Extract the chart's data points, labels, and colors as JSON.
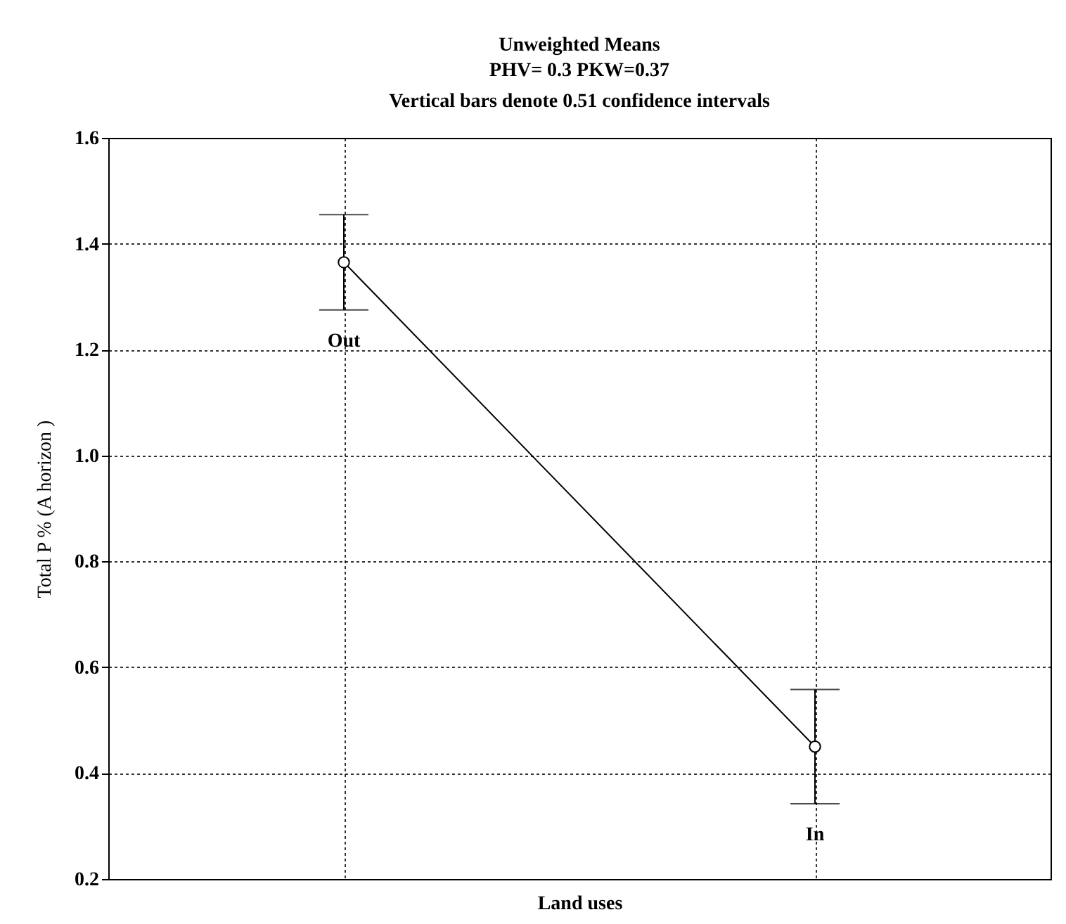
{
  "chart_data": {
    "type": "line",
    "title": "Unweighted Means",
    "subtitle": "PHV= 0.3   PKW=0.37",
    "annotations": [
      "Vertical bars denote 0.51 confidence intervals"
    ],
    "xlabel": "Land uses",
    "ylabel": "Total P % (A horizon )",
    "categories": [
      "Out",
      "In"
    ],
    "color": "#000000",
    "values": [
      1.365,
      0.45
    ],
    "errors": [
      0.09,
      [
        0.342,
        0.558
      ]
    ],
    "ylim": [
      0.2,
      1.6
    ],
    "yticks": [
      0.2,
      0.4,
      0.6,
      0.8,
      {
        "value": 1.0,
        "label": "1.0"
      },
      1.2,
      1.4,
      1.6
    ],
    "grid": true,
    "marker": "circle",
    "line_style": "solid"
  }
}
